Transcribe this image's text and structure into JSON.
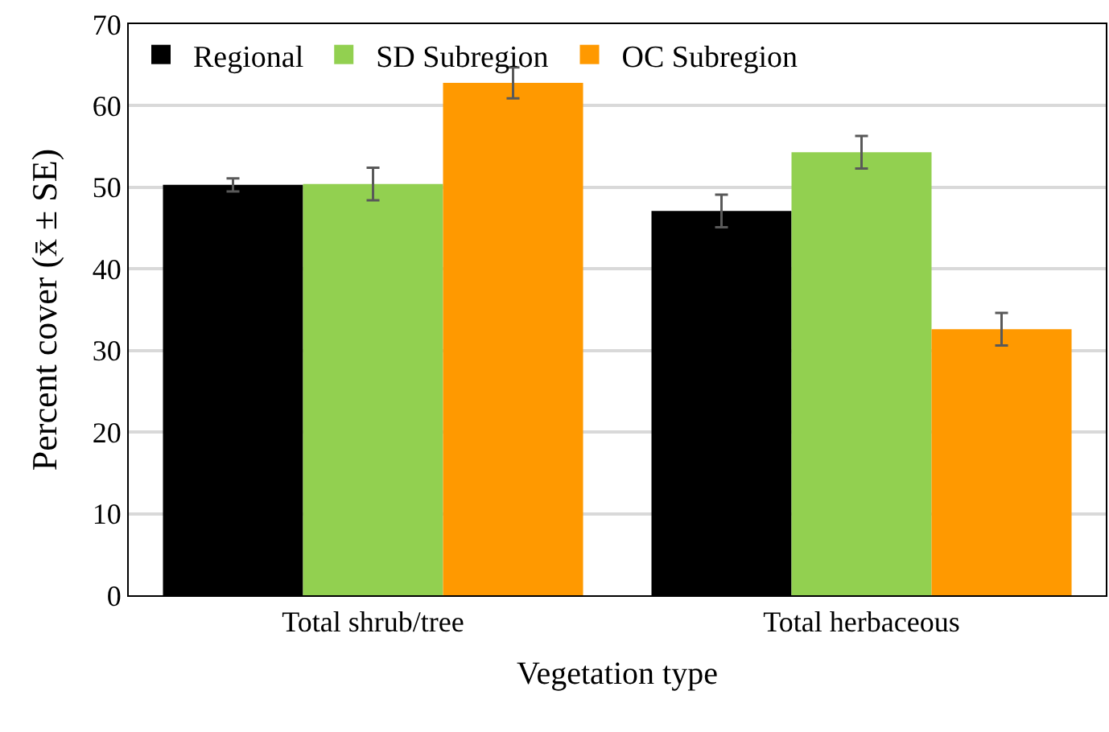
{
  "chart_data": {
    "type": "bar",
    "xlabel": "Vegetation type",
    "ylabel": "Percent cover (x̄ ± SE)",
    "categories": [
      "Total shrub/tree",
      "Total herbaceous"
    ],
    "series": [
      {
        "name": "Regional",
        "color": "#000000",
        "values": [
          50.3,
          47.1
        ],
        "errors": [
          0.8,
          2.0
        ]
      },
      {
        "name": "SD Subregion",
        "color": "#92d050",
        "values": [
          50.4,
          54.3
        ],
        "errors": [
          2.0,
          2.0
        ]
      },
      {
        "name": "OC Subregion",
        "color": "#ff9900",
        "values": [
          62.8,
          32.6
        ],
        "errors": [
          1.9,
          2.0
        ]
      }
    ],
    "ylim": [
      0,
      70
    ],
    "yticks": [
      0,
      10,
      20,
      30,
      40,
      50,
      60,
      70
    ],
    "grid": "y",
    "legend": "top left"
  }
}
